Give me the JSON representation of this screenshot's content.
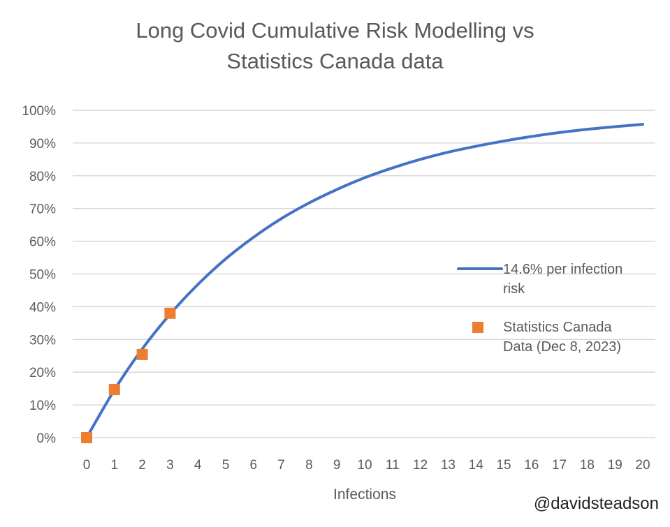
{
  "chart_data": {
    "type": "line",
    "title_lines": [
      "Long Covid Cumulative Risk Modelling vs",
      "Statistics Canada data"
    ],
    "xlabel": "Infections",
    "ylabel": "",
    "xlim": [
      0,
      20
    ],
    "ylim": [
      0,
      100
    ],
    "x_ticks": [
      "0",
      "1",
      "2",
      "3",
      "4",
      "5",
      "6",
      "7",
      "8",
      "9",
      "10",
      "11",
      "12",
      "13",
      "14",
      "15",
      "16",
      "17",
      "18",
      "19",
      "20"
    ],
    "y_ticks": [
      "0%",
      "10%",
      "20%",
      "30%",
      "40%",
      "50%",
      "60%",
      "70%",
      "80%",
      "90%",
      "100%"
    ],
    "grid": "horizontal",
    "legend_placement": "right",
    "series": [
      {
        "name": "14.6% per infection risk",
        "legend_lines": [
          "14.6% per infection",
          "risk"
        ],
        "kind": "line",
        "color": "#4472C4",
        "x": [
          0,
          1,
          2,
          3,
          4,
          5,
          6,
          7,
          8,
          9,
          10,
          11,
          12,
          13,
          14,
          15,
          16,
          17,
          18,
          19,
          20
        ],
        "y": [
          0,
          14.6,
          27.1,
          37.7,
          46.8,
          54.6,
          61.2,
          66.9,
          71.7,
          75.8,
          79.4,
          82.4,
          85.0,
          87.2,
          89.0,
          90.6,
          92.0,
          93.2,
          94.2,
          95.0,
          95.7
        ]
      },
      {
        "name": "Statistics Canada Data (Dec 8, 2023)",
        "legend_lines": [
          "Statistics Canada",
          "Data (Dec 8, 2023)"
        ],
        "kind": "scatter",
        "color": "#ED7D31",
        "x": [
          0,
          1,
          2,
          3
        ],
        "y": [
          0,
          14.7,
          25.4,
          38.0
        ]
      }
    ]
  },
  "watermark": "@davidsteadson"
}
